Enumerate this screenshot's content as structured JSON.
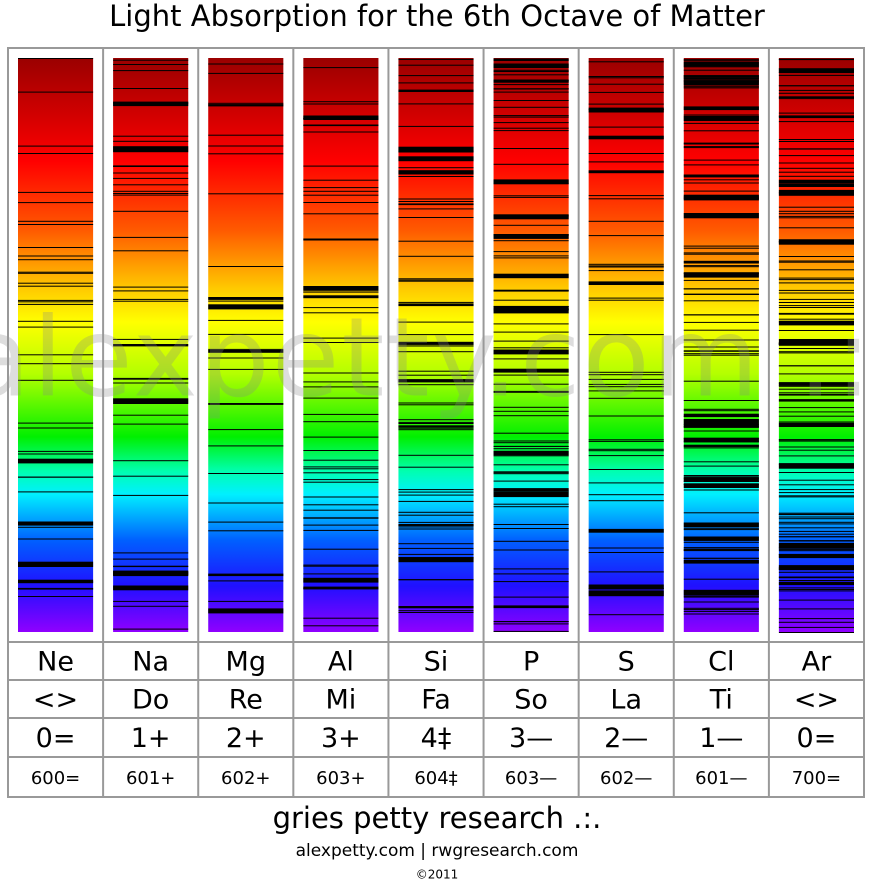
{
  "title": "Light Absorption for the 6th Octave of Matter",
  "watermark": "alexpetty.com .:.",
  "columns": [
    {
      "element": "Ne",
      "note": "<>",
      "number": "0=",
      "code": "600="
    },
    {
      "element": "Na",
      "note": "Do",
      "number": "1+",
      "code": "601+"
    },
    {
      "element": "Mg",
      "note": "Re",
      "number": "2+",
      "code": "602+"
    },
    {
      "element": "Al",
      "note": "Mi",
      "number": "3+",
      "code": "603+"
    },
    {
      "element": "Si",
      "note": "Fa",
      "number": "4‡",
      "code": "604‡"
    },
    {
      "element": "P",
      "note": "So",
      "number": "3—",
      "code": "603—"
    },
    {
      "element": "S",
      "note": "La",
      "number": "2—",
      "code": "602—"
    },
    {
      "element": "Cl",
      "note": "Ti",
      "number": "1—",
      "code": "601—"
    },
    {
      "element": "Ar",
      "note": "<>",
      "number": "0=",
      "code": "700="
    }
  ],
  "footer": {
    "name": "gries petty research .:.",
    "links": "alexpetty.com | rwgresearch.com",
    "copyright": "©2011"
  }
}
